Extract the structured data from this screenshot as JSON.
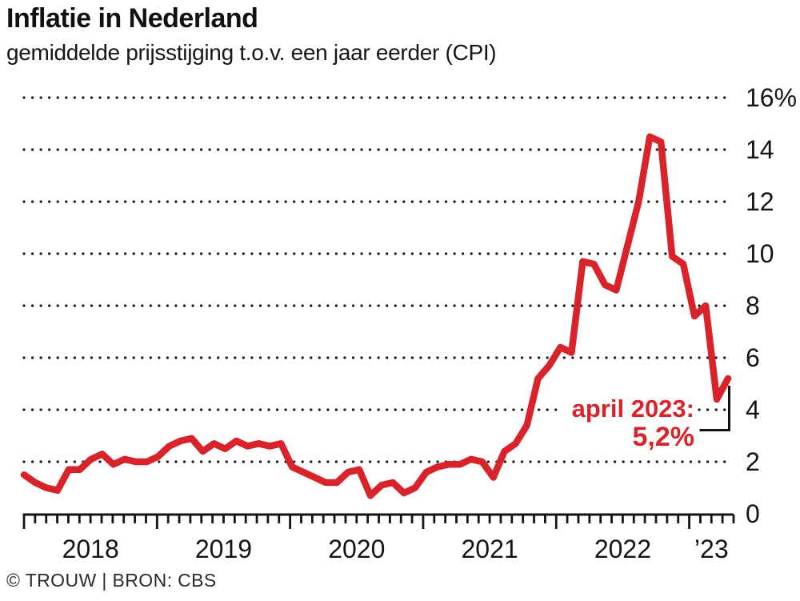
{
  "header": {
    "title": "Inflatie in Nederland",
    "subtitle": "gemiddelde prijsstijging t.o.v. een jaar eerder (CPI)"
  },
  "footer": {
    "credit": "© TROUW | BRON: CBS"
  },
  "colors": {
    "line": "#d9232b",
    "axis": "#141414",
    "grid_dots": "#1a1a1a",
    "annotation": "#d9232b",
    "background": "#ffffff"
  },
  "chart_data": {
    "type": "line",
    "title": "Inflatie in Nederland",
    "subtitle": "gemiddelde prijsstijging t.o.v. een jaar eerder (CPI)",
    "x_frequency": "monthly",
    "x_start": "2018-01",
    "x_end": "2023-04",
    "x_tick_labels": [
      "2018",
      "2019",
      "2020",
      "2021",
      "2022",
      "’23"
    ],
    "y_ticks": [
      0,
      2,
      4,
      6,
      8,
      10,
      12,
      14,
      16
    ],
    "y_tick_labels": [
      "0",
      "2",
      "4",
      "6",
      "8",
      "10",
      "12",
      "14",
      "16%"
    ],
    "ylim": [
      0,
      16
    ],
    "grid": "horizontal-dotted",
    "legend": "none",
    "series": [
      {
        "name": "CPI",
        "values": [
          1.5,
          1.2,
          1.0,
          0.9,
          1.7,
          1.7,
          2.1,
          2.3,
          1.9,
          2.1,
          2.0,
          2.0,
          2.2,
          2.6,
          2.8,
          2.9,
          2.4,
          2.7,
          2.5,
          2.8,
          2.6,
          2.7,
          2.6,
          2.7,
          1.8,
          1.6,
          1.4,
          1.2,
          1.2,
          1.6,
          1.7,
          0.7,
          1.1,
          1.2,
          0.8,
          1.0,
          1.6,
          1.8,
          1.9,
          1.9,
          2.1,
          2.0,
          1.4,
          2.4,
          2.7,
          3.4,
          5.2,
          5.7,
          6.4,
          6.2,
          9.7,
          9.6,
          8.8,
          8.6,
          10.3,
          12.0,
          14.5,
          14.3,
          9.9,
          9.6,
          7.6,
          8.0,
          4.4,
          5.2
        ]
      }
    ],
    "annotation": {
      "label": "april 2023:",
      "value": "5,2%"
    }
  }
}
